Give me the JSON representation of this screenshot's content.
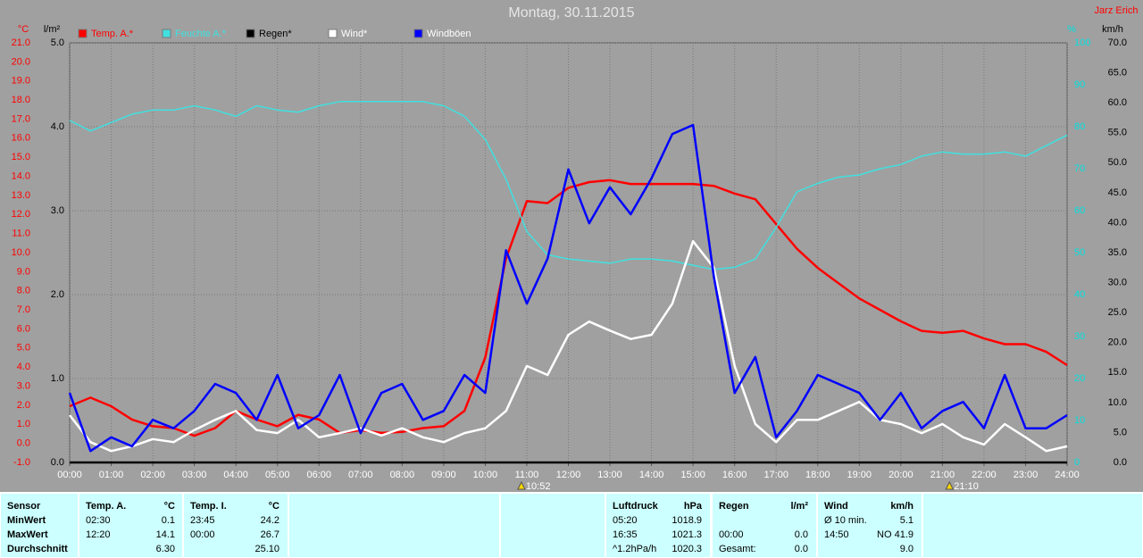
{
  "chart_data": {
    "type": "line",
    "title": "Montag, 30.11.2015",
    "author": "Jarz Erich",
    "grid": true,
    "xlim": [
      0,
      24
    ],
    "xticks": [
      {
        "value": 0,
        "label": "00:00"
      },
      {
        "value": 1,
        "label": "01:00"
      },
      {
        "value": 2,
        "label": "02:00"
      },
      {
        "value": 3,
        "label": "03:00"
      },
      {
        "value": 4,
        "label": "04:00"
      },
      {
        "value": 5,
        "label": "05:00"
      },
      {
        "value": 6,
        "label": "06:00"
      },
      {
        "value": 7,
        "label": "07:00"
      },
      {
        "value": 8,
        "label": "08:00"
      },
      {
        "value": 9,
        "label": "09:00"
      },
      {
        "value": 10,
        "label": "10:00"
      },
      {
        "value": 11,
        "label": "11:00"
      },
      {
        "value": 12,
        "label": "12:00"
      },
      {
        "value": 13,
        "label": "13:00"
      },
      {
        "value": 14,
        "label": "14:00"
      },
      {
        "value": 15,
        "label": "15:00"
      },
      {
        "value": 16,
        "label": "16:00"
      },
      {
        "value": 17,
        "label": "17:00"
      },
      {
        "value": 18,
        "label": "18:00"
      },
      {
        "value": 19,
        "label": "19:00"
      },
      {
        "value": 20,
        "label": "20:00"
      },
      {
        "value": 21,
        "label": "21:00"
      },
      {
        "value": 22,
        "label": "22:00"
      },
      {
        "value": 23,
        "label": "23:00"
      },
      {
        "value": 24,
        "label": "24:00"
      }
    ],
    "ylabel": "°C",
    "ylim": [
      -1,
      21
    ],
    "yticks": [
      {
        "value": -1,
        "label": "-1.0"
      },
      {
        "value": 0,
        "label": "0.0"
      },
      {
        "value": 1,
        "label": "1.0"
      },
      {
        "value": 2,
        "label": "2.0"
      },
      {
        "value": 3,
        "label": "3.0"
      },
      {
        "value": 4,
        "label": "4.0"
      },
      {
        "value": 5,
        "label": "5.0"
      },
      {
        "value": 6,
        "label": "6.0"
      },
      {
        "value": 7,
        "label": "7.0"
      },
      {
        "value": 8,
        "label": "8.0"
      },
      {
        "value": 9,
        "label": "9.0"
      },
      {
        "value": 10,
        "label": "10.0"
      },
      {
        "value": 11,
        "label": "11.0"
      },
      {
        "value": 12,
        "label": "12.0"
      },
      {
        "value": 13,
        "label": "13.0"
      },
      {
        "value": 14,
        "label": "14.0"
      },
      {
        "value": 15,
        "label": "15.0"
      },
      {
        "value": 16,
        "label": "16.0"
      },
      {
        "value": 17,
        "label": "17.0"
      },
      {
        "value": 18,
        "label": "18.0"
      },
      {
        "value": 19,
        "label": "19.0"
      },
      {
        "value": 20,
        "label": "20.0"
      },
      {
        "value": 21,
        "label": "21.0"
      }
    ],
    "y2label": "l/m²",
    "y2lim": [
      0,
      5
    ],
    "y2ticks": [
      {
        "value": 0,
        "label": "0.0"
      },
      {
        "value": 1,
        "label": "1.0"
      },
      {
        "value": 2,
        "label": "2.0"
      },
      {
        "value": 3,
        "label": "3.0"
      },
      {
        "value": 4,
        "label": "4.0"
      },
      {
        "value": 5,
        "label": "5.0"
      }
    ],
    "y3label": "%",
    "y3lim": [
      0,
      100
    ],
    "y3ticks": [
      0,
      10,
      20,
      30,
      40,
      50,
      60,
      70,
      80,
      90,
      100
    ],
    "y4label": "km/h",
    "y4lim": [
      0,
      70
    ],
    "y4ticks": [
      {
        "value": 0,
        "label": "0.0"
      },
      {
        "value": 5,
        "label": "5.0"
      },
      {
        "value": 10,
        "label": "10.0"
      },
      {
        "value": 15,
        "label": "15.0"
      },
      {
        "value": 20,
        "label": "20.0"
      },
      {
        "value": 25,
        "label": "25.0"
      },
      {
        "value": 30,
        "label": "30.0"
      },
      {
        "value": 35,
        "label": "35.0"
      },
      {
        "value": 40,
        "label": "40.0"
      },
      {
        "value": 45,
        "label": "45.0"
      },
      {
        "value": 50,
        "label": "50.0"
      },
      {
        "value": 55,
        "label": "55.0"
      },
      {
        "value": 60,
        "label": "60.0"
      },
      {
        "value": 65,
        "label": "65.0"
      },
      {
        "value": 70,
        "label": "70.0"
      }
    ],
    "x": [
      0,
      0.5,
      1,
      1.5,
      2,
      2.5,
      3,
      3.5,
      4,
      4.5,
      5,
      5.5,
      6,
      6.5,
      7,
      7.5,
      8,
      8.5,
      9,
      9.5,
      10,
      10.5,
      11,
      11.5,
      12,
      12.5,
      13,
      13.5,
      14,
      14.5,
      15,
      15.5,
      16,
      16.5,
      17,
      17.5,
      18,
      18.5,
      19,
      19.5,
      20,
      20.5,
      21,
      21.5,
      22,
      22.5,
      23,
      23.5,
      24
    ],
    "series": [
      {
        "name": "Temp. A.*",
        "color": "#ff0000",
        "axis": "y",
        "values": [
          1.95,
          2.4,
          1.95,
          1.25,
          0.9,
          0.8,
          0.4,
          0.8,
          1.7,
          1.25,
          0.9,
          1.5,
          1.25,
          0.55,
          0.7,
          0.55,
          0.6,
          0.8,
          0.9,
          1.7,
          4.5,
          9.7,
          12.7,
          12.6,
          13.4,
          13.7,
          13.8,
          13.6,
          13.6,
          13.6,
          13.6,
          13.5,
          13.1,
          12.8,
          11.5,
          10.2,
          9.2,
          8.4,
          7.6,
          7.0,
          6.4,
          5.9,
          5.8,
          5.9,
          5.5,
          5.2,
          5.2,
          4.8,
          4.1
        ]
      },
      {
        "name": "Feuchte A.*",
        "color": "#40e0e0",
        "axis": "y3",
        "values": [
          81.5,
          79,
          81,
          83,
          84,
          84,
          85,
          84,
          82.5,
          85,
          84,
          83.5,
          85,
          86,
          86,
          86,
          86,
          86,
          85,
          82.5,
          77,
          67.5,
          55,
          49.5,
          48.5,
          48,
          47.5,
          48.5,
          48.5,
          48,
          47,
          46,
          46.5,
          48.5,
          56,
          64.5,
          66.5,
          68,
          68.5,
          70,
          71,
          73,
          74,
          73.5,
          73.5,
          74,
          73,
          75.5,
          78
        ]
      },
      {
        "name": "Regen*",
        "color": "#000000",
        "axis": "y2",
        "values": [
          0,
          0,
          0,
          0,
          0,
          0,
          0,
          0,
          0,
          0,
          0,
          0,
          0,
          0,
          0,
          0,
          0,
          0,
          0,
          0,
          0,
          0,
          0,
          0,
          0,
          0,
          0,
          0,
          0,
          0,
          0,
          0,
          0,
          0,
          0,
          0,
          0,
          0,
          0,
          0,
          0,
          0,
          0,
          0,
          0,
          0,
          0,
          0,
          0
        ]
      },
      {
        "name": "Wind*",
        "color": "#ffffff",
        "axis": "y4",
        "values": [
          7.9,
          3.4,
          1.9,
          2.7,
          3.9,
          3.4,
          5.4,
          7.1,
          8.6,
          5.4,
          4.9,
          7.1,
          4.2,
          4.9,
          5.7,
          4.5,
          5.7,
          4.2,
          3.4,
          4.9,
          5.7,
          8.6,
          16.1,
          14.6,
          21.3,
          23.5,
          22,
          20.6,
          21.3,
          26.5,
          36.9,
          32.5,
          16.1,
          6.4,
          3.4,
          7.1,
          7.1,
          8.6,
          10.1,
          7.1,
          6.4,
          4.9,
          6.4,
          4.2,
          3,
          6.4,
          4.2,
          1.9,
          2.7
        ]
      },
      {
        "name": "Windböen",
        "color": "#0000ff",
        "axis": "y4",
        "values": [
          11.6,
          1.9,
          4.2,
          2.7,
          7.1,
          5.7,
          8.6,
          13.1,
          11.6,
          7.1,
          14.6,
          5.7,
          7.9,
          14.6,
          4.9,
          11.6,
          13.1,
          7.1,
          8.6,
          14.6,
          11.6,
          35.4,
          26.5,
          34,
          48.9,
          39.9,
          45.9,
          41.4,
          47.4,
          54.8,
          56.3,
          31,
          11.6,
          17.6,
          4.2,
          8.6,
          14.6,
          13.1,
          11.6,
          7.1,
          11.6,
          5.7,
          8.6,
          10.1,
          5.7,
          14.6,
          5.7,
          5.7,
          7.9
        ]
      }
    ],
    "annotations": [
      {
        "x": 10.87,
        "label": "10:52"
      },
      {
        "x": 21.17,
        "label": "21:10"
      }
    ]
  },
  "stats": {
    "row_labels": [
      "Sensor",
      "MinWert",
      "MaxWert",
      "Durchschnitt"
    ],
    "panels": [
      {
        "title": "Temp. A.",
        "unit": "°C",
        "min": {
          "time": "02:30",
          "value": "0.1"
        },
        "max": {
          "time": "12:20",
          "value": "14.1"
        },
        "avg": {
          "value": "6.30"
        }
      },
      {
        "title": "Temp. I.",
        "unit": "°C",
        "min": {
          "time": "23:45",
          "value": "24.2"
        },
        "max": {
          "time": "00:00",
          "value": "26.7"
        },
        "avg": {
          "value": "25.10"
        }
      },
      {
        "title": "Luftdruck",
        "unit": "hPa",
        "min": {
          "time": "05:20",
          "value": "1018.9"
        },
        "max": {
          "time": "16:35",
          "value": "1021.3"
        },
        "avg": {
          "time": "^1.2hPa/h",
          "value": "1020.3"
        }
      },
      {
        "title": "Regen",
        "unit": "l/m²",
        "max": {
          "time": "00:00",
          "value": "0.0"
        },
        "avg": {
          "time": "Gesamt:",
          "value": "0.0"
        }
      },
      {
        "title": "Wind",
        "unit": "km/h",
        "min": {
          "time": "Ø 10 min.",
          "value": "5.1"
        },
        "max": {
          "time": "14:50",
          "value": "NO 41.9"
        },
        "avg": {
          "value": "9.0"
        }
      }
    ]
  }
}
